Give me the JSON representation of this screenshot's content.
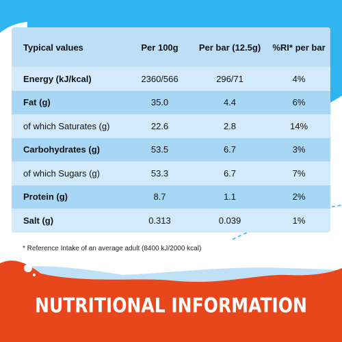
{
  "table": {
    "headers": [
      "Typical values",
      "Per 100g",
      "Per bar (12.5g)",
      "%RI* per bar"
    ],
    "rows": [
      {
        "label": "Energy (kJ/kcal)",
        "per100": "2360/566",
        "perBar": "296/71",
        "ri": "4%"
      },
      {
        "label": "Fat (g)",
        "per100": "35.0",
        "perBar": "4.4",
        "ri": "6%"
      },
      {
        "label": "of which Saturates (g)",
        "per100": "22.6",
        "perBar": "2.8",
        "ri": "14%"
      },
      {
        "label": "Carbohydrates (g)",
        "per100": "53.5",
        "perBar": "6.7",
        "ri": "3%"
      },
      {
        "label": "of which Sugars (g)",
        "per100": "53.3",
        "perBar": "6.7",
        "ri": "7%"
      },
      {
        "label": "Protein (g)",
        "per100": "8.7",
        "perBar": "1.1",
        "ri": "2%"
      },
      {
        "label": "Salt (g)",
        "per100": "0.313",
        "perBar": "0.039",
        "ri": "1%"
      }
    ]
  },
  "footnote": "* Reference Intake of an average adult (8400 kJ/2000 kcal)",
  "title": "NUTRITIONAL INFORMATION",
  "colors": {
    "sky_blue": "#2eb5f0",
    "table_dark": "#a8d6f5",
    "table_light": "#d2eafb",
    "banner_red": "#e8461c",
    "text": "#111111"
  }
}
